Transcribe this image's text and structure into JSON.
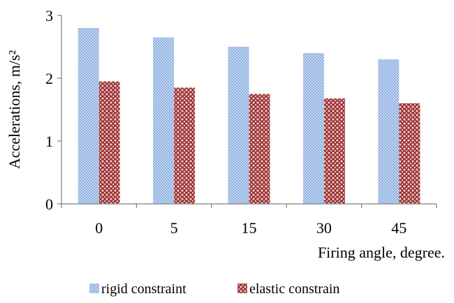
{
  "chart_data": {
    "type": "bar",
    "categories": [
      "0",
      "5",
      "15",
      "30",
      "45"
    ],
    "series": [
      {
        "name": "rigid constraint",
        "values": [
          2.8,
          2.65,
          2.5,
          2.4,
          2.3
        ],
        "color": "#9cb8e2",
        "pattern": "checker"
      },
      {
        "name": "elastic constrain",
        "values": [
          1.95,
          1.85,
          1.75,
          1.68,
          1.6
        ],
        "color": "#9b2f33",
        "pattern": "diamond"
      }
    ],
    "xlabel": "Firing angle, degree.",
    "ylabel": "Accelerations, m/s²",
    "ylim": [
      0,
      3
    ],
    "yticks": [
      "0",
      "1",
      "2",
      "3"
    ],
    "grid": false,
    "legend_position": "bottom"
  }
}
